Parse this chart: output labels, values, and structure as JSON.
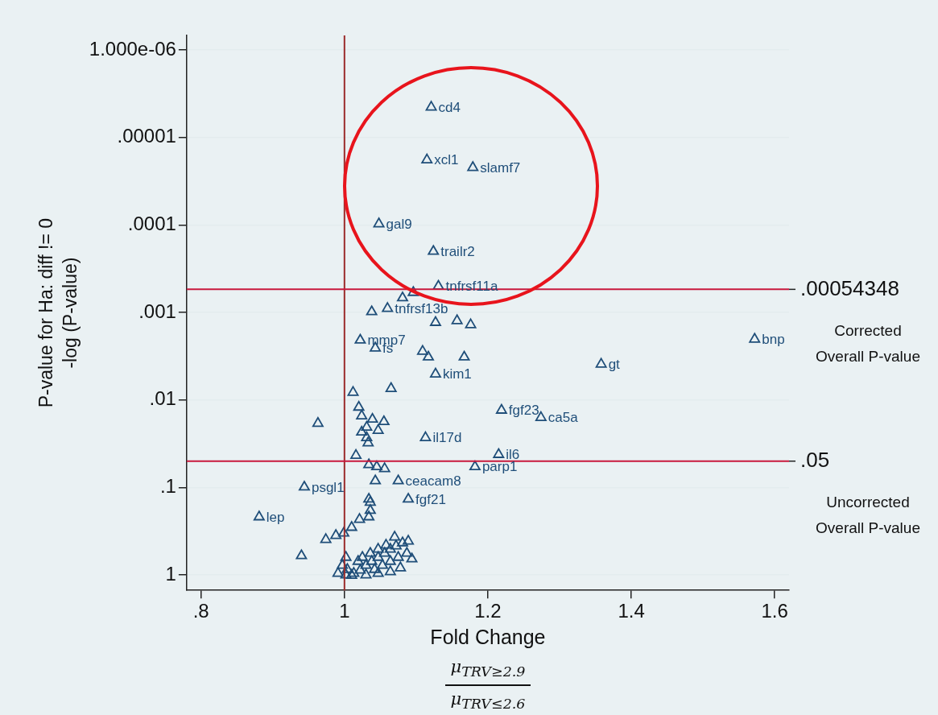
{
  "chart_data": {
    "type": "scatter",
    "xlabel": "Fold Change",
    "ylabel": "P-value for Ha: diff != 0\n-log (P-value)",
    "color": "#1f4e79",
    "marker": "triangle",
    "grid": "y",
    "log": "y",
    "xlim": [
      0.78,
      1.62
    ],
    "xticks": [
      {
        "value": 0.8,
        "label": ".8"
      },
      1,
      1.2,
      1.4,
      1.6
    ],
    "ylim": [
      1.5,
      6.8e-07
    ],
    "yticks": [
      {
        "value": 1e-06,
        "label": "1.000e-06"
      },
      {
        "value": 1e-05,
        "label": ".00001"
      },
      {
        "value": 0.0001,
        "label": ".0001"
      },
      {
        "value": 0.001,
        "label": ".001"
      },
      {
        "value": 0.01,
        "label": ".01"
      },
      {
        "value": 0.1,
        "label": ".1"
      },
      1
    ],
    "x": [
      1.121,
      1.115,
      1.179,
      1.048,
      1.124,
      1.131,
      1.096,
      1.081,
      1.06,
      1.038,
      1.127,
      1.157,
      1.176,
      1.022,
      1.043,
      1.109,
      1.117,
      1.167,
      1.127,
      1.358,
      1.572,
      1.012,
      1.065,
      0.963,
      1.02,
      1.024,
      1.039,
      1.055,
      1.031,
      1.047,
      1.024,
      1.031,
      1.033,
      1.113,
      1.219,
      1.274,
      1.215,
      1.016,
      1.182,
      1.034,
      1.045,
      1.056,
      1.043,
      1.075,
      0.944,
      1.034,
      1.036,
      1.089,
      1.036,
      1.034,
      0.881,
      1.021,
      1.01,
      0.999,
      0.988,
      0.974,
      0.94,
      0.997,
      1.004,
      1.013,
      1.022,
      1.03,
      1.038,
      1.047,
      1.056,
      1.064,
      1.072,
      1.081,
      1.089,
      1.025,
      1.036,
      1.047,
      1.058,
      1.07,
      1.002,
      0.991,
      1.002,
      1.019,
      1.042,
      1.053,
      1.064,
      1.075,
      1.087,
      1.094,
      1.078,
      1.01,
      1.03,
      1.047,
      1.064
    ],
    "values": [
      4.5e-06,
      1.8e-05,
      2.2e-05,
      9.7e-05,
      0.0002,
      0.0005,
      0.00059,
      0.00068,
      0.0009,
      0.00098,
      0.0013,
      0.00124,
      0.00138,
      0.00207,
      0.00255,
      0.00278,
      0.00323,
      0.00323,
      0.00505,
      0.0039,
      0.00202,
      0.0082,
      0.0074,
      0.0185,
      0.0121,
      0.0152,
      0.0166,
      0.0177,
      0.0205,
      0.0223,
      0.0233,
      0.027,
      0.031,
      0.027,
      0.0131,
      0.0159,
      0.042,
      0.043,
      0.058,
      0.055,
      0.058,
      0.061,
      0.084,
      0.084,
      0.099,
      0.136,
      0.148,
      0.136,
      0.183,
      0.217,
      0.217,
      0.232,
      0.286,
      0.333,
      0.354,
      0.394,
      0.603,
      0.778,
      0.865,
      0.96,
      0.883,
      0.778,
      0.7,
      0.63,
      0.566,
      0.508,
      0.467,
      0.43,
      0.411,
      0.63,
      0.566,
      0.508,
      0.457,
      0.37,
      0.63,
      0.96,
      1.0,
      0.7,
      0.865,
      0.778,
      0.7,
      0.63,
      0.566,
      0.656,
      0.83,
      1.01,
      1.0,
      0.96,
      0.92
    ],
    "value_labels": [
      "cd4",
      "xcl1",
      "slamf7",
      "gal9",
      "trailr2",
      "tnfrsf11a",
      null,
      null,
      "tnfrsf13b",
      null,
      null,
      null,
      null,
      "mmp7",
      "fs",
      null,
      null,
      null,
      "kim1",
      "gt",
      "bnp",
      null,
      null,
      null,
      null,
      null,
      null,
      null,
      null,
      null,
      null,
      null,
      null,
      "il17d",
      "fgf23",
      "ca5a",
      "il6",
      null,
      "parp1",
      null,
      null,
      null,
      null,
      "ceacam8",
      "psgl1",
      null,
      null,
      "fgf21",
      null,
      null,
      "lep",
      null,
      null,
      null,
      null,
      null,
      null,
      null,
      null,
      null,
      null,
      null,
      null,
      null,
      null,
      null,
      null,
      null,
      null,
      null,
      null,
      null,
      null,
      null,
      null,
      null,
      null,
      null,
      null,
      null,
      null,
      null,
      null,
      null,
      null,
      null,
      null,
      null,
      null
    ],
    "ref_lines": [
      {
        "axis": "x",
        "value": 1,
        "color": "#9b2b2b"
      },
      {
        "axis": "y",
        "value": 0.00054348,
        "label": ".00054348",
        "color": "#c8193c"
      },
      {
        "axis": "y",
        "value": 0.05,
        "label": ".05",
        "color": "#c8193c"
      }
    ],
    "annotations": [
      "Corrected Overall P-value",
      "Uncorrected Overall P-value",
      "μ$_{TRV≥2.9}$",
      "μ$_{TRV≤2.6}$"
    ]
  }
}
